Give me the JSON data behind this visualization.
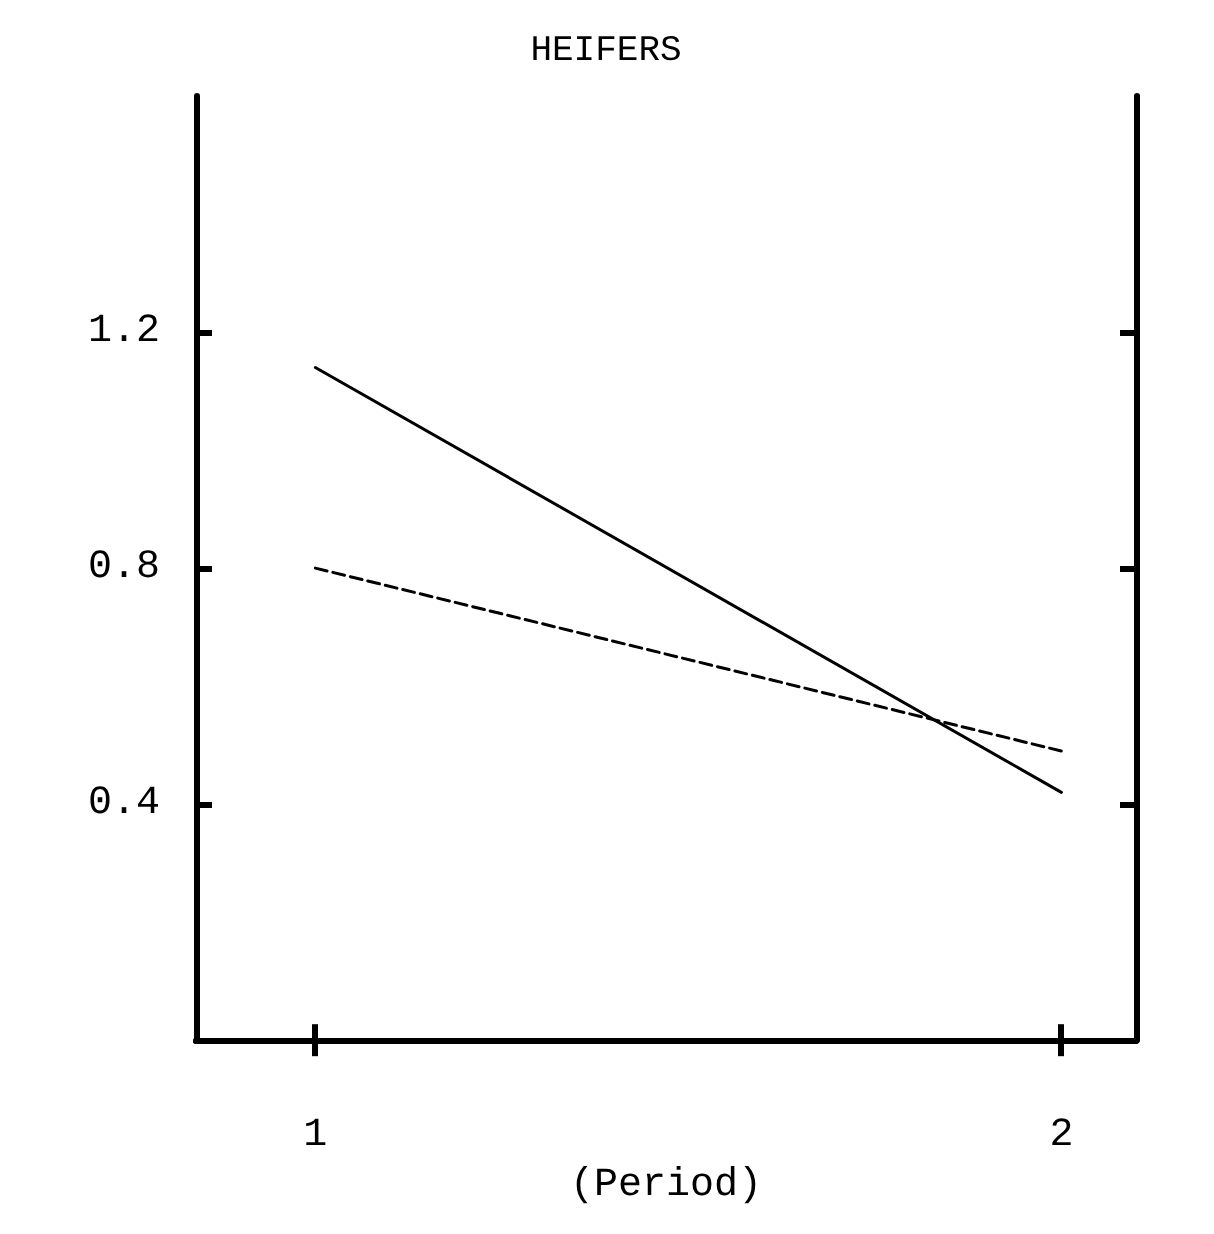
{
  "chart_data": {
    "type": "line",
    "title": "HEIFERS",
    "xlabel": "(Period)",
    "x": [
      1,
      2
    ],
    "series": [
      {
        "color": "#000000",
        "line_style": "solid",
        "values": [
          1.14,
          0.42
        ]
      },
      {
        "color": "#000000",
        "line_style": "dashed",
        "values": [
          0.8,
          0.49
        ]
      }
    ],
    "xlim": [
      0.84,
      2.1
    ],
    "xticks": [
      1,
      2
    ],
    "ylim": [
      0,
      1.6
    ],
    "yticks": [
      0.4,
      0.8,
      1.2
    ],
    "grid": false,
    "marker": "none"
  }
}
